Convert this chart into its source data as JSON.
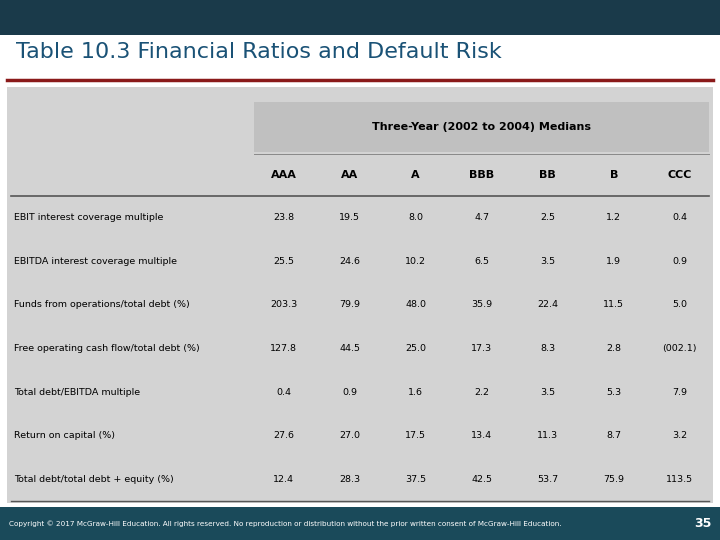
{
  "title": "Table 10.3 Financial Ratios and Default Risk",
  "header_bar_color": "#1a3a4a",
  "title_color": "#1a5276",
  "red_line_color": "#8b1a1a",
  "table_bg_color": "#d3d3d3",
  "footer_bg_color": "#1a4a5a",
  "footer_text": "Copyright © 2017 McGraw-Hill Education. All rights reserved. No reproduction or distribution without the prior written consent of McGraw-Hill Education.",
  "footer_page": "35",
  "group_header": "Three-Year (2002 to 2004) Medians",
  "col_headers": [
    "AAA",
    "AA",
    "A",
    "BBB",
    "BB",
    "B",
    "CCC"
  ],
  "row_labels": [
    "EBIT interest coverage multiple",
    "EBITDA interest coverage multiple",
    "Funds from operations/total debt (%)",
    "Free operating cash flow/total debt (%)",
    "Total debt/EBITDA multiple",
    "Return on capital (%)",
    "Total debt/total debt + equity (%)"
  ],
  "table_data": [
    [
      "23.8",
      "19.5",
      "8.0",
      "4.7",
      "2.5",
      "1.2",
      "0.4"
    ],
    [
      "25.5",
      "24.6",
      "10.2",
      "6.5",
      "3.5",
      "1.9",
      "0.9"
    ],
    [
      "203.3",
      "79.9",
      "48.0",
      "35.9",
      "22.4",
      "11.5",
      "5.0"
    ],
    [
      "127.8",
      "44.5",
      "25.0",
      "17.3",
      "8.3",
      "2.8",
      "(002.1)"
    ],
    [
      "0.4",
      "0.9",
      "1.6",
      "2.2",
      "3.5",
      "5.3",
      "7.9"
    ],
    [
      "27.6",
      "27.0",
      "17.5",
      "13.4",
      "11.3",
      "8.7",
      "3.2"
    ],
    [
      "12.4",
      "28.3",
      "37.5",
      "42.5",
      "53.7",
      "75.9",
      "113.5"
    ]
  ]
}
